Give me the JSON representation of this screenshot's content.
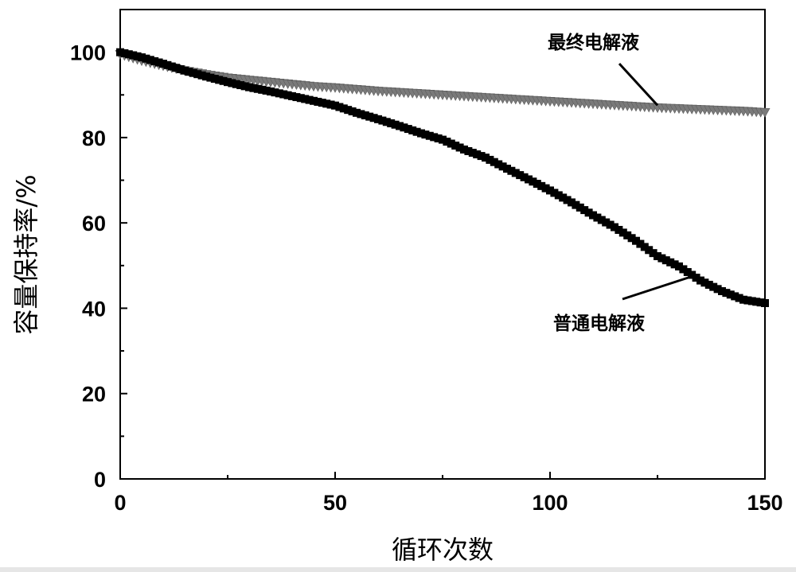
{
  "chart_data": {
    "type": "scatter",
    "xlabel": "循环次数",
    "ylabel": "容量保持率/%",
    "xlim": [
      0,
      150
    ],
    "ylim": [
      0,
      110
    ],
    "x_ticks": [
      0,
      50,
      100,
      150
    ],
    "y_ticks": [
      0,
      20,
      40,
      60,
      80,
      100
    ],
    "grid": false,
    "series": [
      {
        "name": "最终电解液",
        "color": "#7a7a7a",
        "marker": "triangle-down",
        "x": [
          0,
          5,
          10,
          15,
          20,
          25,
          30,
          35,
          40,
          45,
          50,
          55,
          60,
          65,
          70,
          75,
          80,
          85,
          90,
          95,
          100,
          105,
          110,
          115,
          120,
          125,
          130,
          135,
          140,
          145,
          150
        ],
        "y": [
          99.5,
          98.0,
          96.8,
          95.7,
          94.8,
          94.0,
          93.5,
          93.0,
          92.5,
          92.0,
          91.7,
          91.3,
          90.9,
          90.6,
          90.3,
          90.0,
          89.7,
          89.4,
          89.1,
          88.8,
          88.5,
          88.2,
          87.9,
          87.6,
          87.3,
          87.0,
          86.8,
          86.6,
          86.4,
          86.2,
          85.9
        ]
      },
      {
        "name": "普通电解液",
        "color": "#000000",
        "marker": "square",
        "x": [
          0,
          5,
          10,
          15,
          20,
          25,
          30,
          35,
          40,
          45,
          50,
          55,
          60,
          65,
          70,
          75,
          80,
          85,
          90,
          95,
          100,
          105,
          110,
          115,
          120,
          125,
          130,
          135,
          140,
          145,
          150
        ],
        "y": [
          100.0,
          98.8,
          97.3,
          95.7,
          94.3,
          93.0,
          91.8,
          90.8,
          89.7,
          88.6,
          87.5,
          85.8,
          84.3,
          82.7,
          81.0,
          79.5,
          77.2,
          75.3,
          72.7,
          70.2,
          67.6,
          64.8,
          61.8,
          59.0,
          55.8,
          52.2,
          49.8,
          46.5,
          44.0,
          42.0,
          41.2
        ]
      }
    ],
    "annotations": [
      {
        "text": "最终电解液",
        "series": 0
      },
      {
        "text": "普通电解液",
        "series": 1
      }
    ]
  }
}
